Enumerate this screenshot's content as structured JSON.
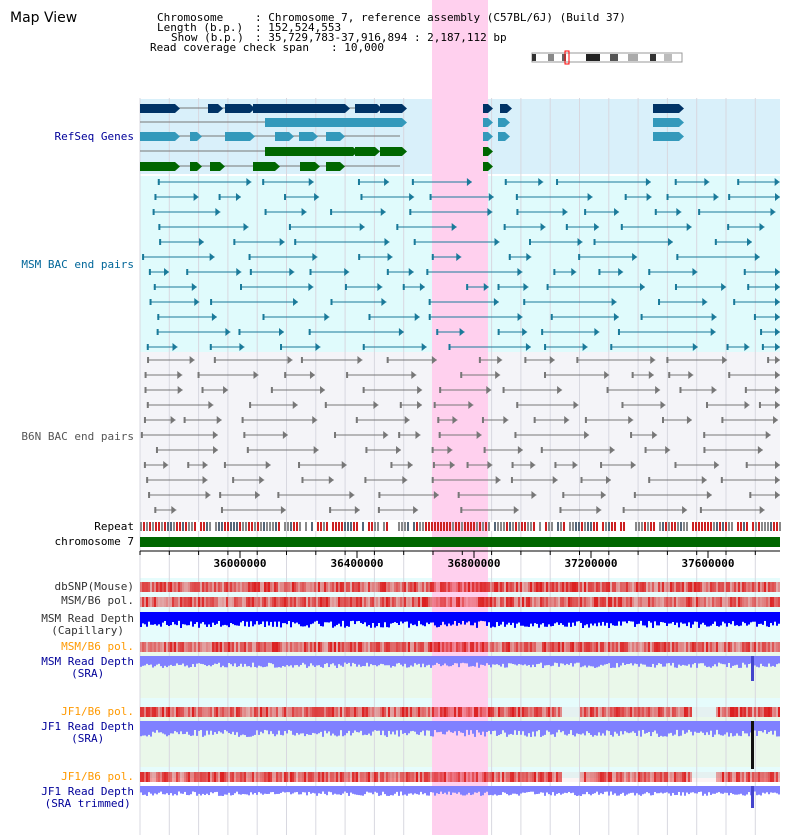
{
  "view": {
    "title": "Map View"
  },
  "info": {
    "chromosome_key": "Chromosome",
    "chromosome_val": ": Chromosome 7, reference assembly (C57BL/6J) (Build 37)",
    "length_key": "Length (b.p.)",
    "length_val": ": 152,524,553",
    "show_key": "Show (b.p.)",
    "show_val": ": 35,729,783-37,916,894 : 2,187,112 bp",
    "span_key": "Read coverage check span",
    "span_val": ": 10,000"
  },
  "tracks": {
    "refseq": {
      "label": "RefSeq Genes",
      "color": "#000099"
    },
    "msm_bac": {
      "label": "MSM BAC end pairs",
      "color": "#006699"
    },
    "b6n_bac": {
      "label": "B6N BAC end pairs",
      "color": "#555555"
    },
    "repeat": {
      "label": "Repeat"
    },
    "chrom": {
      "label": "chromosome 7"
    },
    "dbsnp": {
      "label": "dbSNP(Mouse)"
    },
    "msm_b6_pol_1": {
      "label": "MSM/B6 pol."
    },
    "msm_depth_cap": {
      "label": "MSM Read Depth\n(Capillary)"
    },
    "msm_b6_pol_2": {
      "label": "MSM/B6 pol.",
      "color": "#ff9900"
    },
    "msm_depth_sra": {
      "label": "MSM Read Depth\n(SRA)",
      "color": "#000099"
    },
    "jf1_b6_pol_1": {
      "label": "JF1/B6 pol.",
      "color": "#ff9900"
    },
    "jf1_depth_sra": {
      "label": "JF1 Read Depth\n(SRA)",
      "color": "#000099"
    },
    "jf1_b6_pol_2": {
      "label": "JF1/B6 pol.",
      "color": "#ff9900"
    },
    "jf1_depth_trim": {
      "label": "JF1 Read Depth\n(SRA trimmed)",
      "color": "#000099"
    }
  },
  "ruler": {
    "ticks": [
      "36000000",
      "36400000",
      "36800000",
      "37200000",
      "37600000"
    ]
  },
  "colors": {
    "highlight": "#ffd0ee",
    "refseq_dark": "#003366",
    "refseq_light": "#3399bb",
    "refseq_green": "#006600",
    "chrom_bar": "#006600",
    "depth_blue": "#0000ff",
    "depth_light": "#8080ff"
  }
}
